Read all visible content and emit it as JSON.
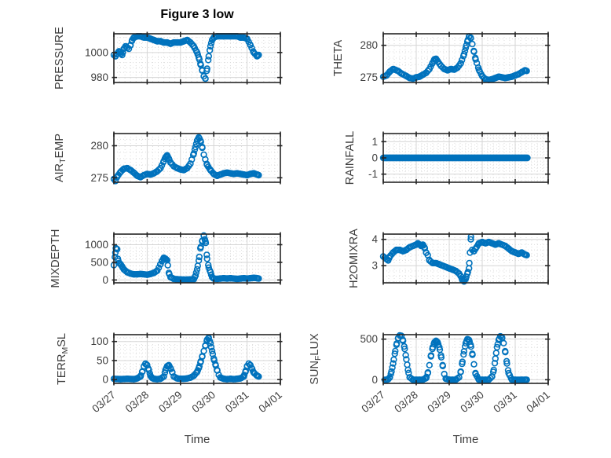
{
  "figure": {
    "title": "Figure 3 low",
    "xlabel": "Time",
    "background": "#ffffff",
    "marker_color": "#0072BD",
    "marker": "open-circle",
    "axis_color": "#262626",
    "label_color": "#3d3d3d",
    "grid_color": "#d6d6d6",
    "minor_grid_color": "#dcdcdc",
    "title_color": "#000000"
  },
  "x_axis": {
    "tick_labels": [
      "03/27",
      "03/28",
      "03/29",
      "03/30",
      "03/31",
      "04/01"
    ],
    "range_days": [
      0,
      5
    ],
    "minor_divisions_per_day": 6,
    "tick_angle_deg": -40,
    "xlabel": "Time"
  },
  "chart_data": [
    {
      "type": "scatter",
      "name": "PRESSURE",
      "row": 0,
      "col": 0,
      "label_parts": {
        "pre": "PRESSURE",
        "sub": "",
        "post": ""
      },
      "ylim": [
        976,
        1015
      ],
      "yticks": [
        980,
        1000
      ],
      "ytick_labels": [
        "980",
        "1000"
      ],
      "x": [
        0,
        0.05,
        0.1,
        0.15,
        0.2,
        0.25,
        0.3,
        0.35,
        0.4,
        0.45,
        0.5,
        0.55,
        0.6,
        0.7,
        0.8,
        0.9,
        1.0,
        1.1,
        1.2,
        1.3,
        1.4,
        1.5,
        1.6,
        1.7,
        1.8,
        1.9,
        2.0,
        2.1,
        2.2,
        2.3,
        2.4,
        2.5,
        2.55,
        2.6,
        2.65,
        2.7,
        2.75,
        2.8,
        2.85,
        2.9,
        2.95,
        3.0,
        3.1,
        3.3,
        3.5,
        3.7,
        3.8,
        3.9,
        4.0,
        4.1,
        4.2,
        4.3,
        4.35
      ],
      "y": [
        998,
        997,
        999,
        1001,
        1000,
        998,
        1003,
        1005,
        1004,
        1003,
        1006,
        1010,
        1012,
        1013,
        1013,
        1012,
        1012,
        1011,
        1010,
        1009,
        1009,
        1008,
        1008,
        1007,
        1008,
        1008,
        1008,
        1009,
        1010,
        1008,
        1005,
        1000,
        996,
        991,
        986,
        981,
        979,
        987,
        997,
        1005,
        1010,
        1012,
        1013,
        1013,
        1013,
        1013,
        1012,
        1012,
        1011,
        1006,
        1000,
        997,
        998
      ]
    },
    {
      "type": "scatter",
      "name": "THETA",
      "row": 0,
      "col": 1,
      "label_parts": {
        "pre": "THETA",
        "sub": "",
        "post": ""
      },
      "ylim": [
        274.2,
        281.8
      ],
      "yticks": [
        275,
        280
      ],
      "ytick_labels": [
        "275",
        "280"
      ],
      "x": [
        0,
        0.1,
        0.2,
        0.3,
        0.35,
        0.45,
        0.55,
        0.7,
        0.8,
        0.9,
        1.0,
        1.1,
        1.2,
        1.3,
        1.4,
        1.5,
        1.55,
        1.6,
        1.65,
        1.75,
        1.85,
        1.95,
        2.05,
        2.15,
        2.25,
        2.35,
        2.45,
        2.5,
        2.55,
        2.6,
        2.65,
        2.7,
        2.75,
        2.8,
        2.9,
        3.0,
        3.1,
        3.2,
        3.3,
        3.4,
        3.5,
        3.6,
        3.7,
        3.8,
        3.9,
        4.0,
        4.1,
        4.2,
        4.3,
        4.35
      ],
      "y": [
        275.1,
        275.3,
        275.9,
        276.3,
        276.2,
        276.0,
        275.6,
        275.2,
        274.9,
        274.8,
        275.0,
        275.1,
        275.4,
        275.7,
        276.3,
        277.3,
        277.8,
        277.9,
        277.5,
        276.8,
        276.3,
        276.1,
        276.3,
        276.2,
        276.5,
        277.2,
        278.6,
        279.6,
        280.6,
        281.4,
        281.2,
        280.2,
        279.0,
        277.8,
        276.2,
        275.2,
        274.7,
        274.6,
        274.7,
        274.9,
        275.1,
        275.0,
        274.9,
        275.0,
        275.1,
        275.3,
        275.5,
        275.8,
        276.1,
        276.0
      ]
    },
    {
      "type": "scatter",
      "name": "AIR_TEMP",
      "row": 1,
      "col": 0,
      "label_parts": {
        "pre": "AIR",
        "sub": "T",
        "post": "EMP"
      },
      "ylim": [
        274.3,
        281.9
      ],
      "yticks": [
        275,
        280
      ],
      "ytick_labels": [
        "275",
        "280"
      ],
      "x": [
        0,
        0.05,
        0.1,
        0.2,
        0.3,
        0.4,
        0.5,
        0.6,
        0.7,
        0.8,
        0.9,
        1.0,
        1.1,
        1.2,
        1.3,
        1.4,
        1.5,
        1.55,
        1.6,
        1.65,
        1.7,
        1.8,
        1.9,
        2.0,
        2.1,
        2.2,
        2.3,
        2.4,
        2.45,
        2.5,
        2.55,
        2.6,
        2.65,
        2.7,
        2.8,
        2.9,
        3.0,
        3.1,
        3.2,
        3.3,
        3.4,
        3.5,
        3.6,
        3.7,
        3.8,
        3.9,
        4.0,
        4.1,
        4.2,
        4.3,
        4.35
      ],
      "y": [
        274.8,
        274.5,
        275.2,
        275.9,
        276.4,
        276.5,
        276.2,
        275.8,
        275.3,
        275.1,
        275.4,
        275.6,
        275.5,
        275.7,
        276.0,
        276.5,
        277.6,
        278.2,
        278.5,
        278.0,
        277.4,
        276.8,
        276.5,
        276.3,
        276.2,
        276.5,
        277.2,
        278.8,
        279.8,
        280.8,
        281.3,
        280.8,
        279.8,
        278.6,
        277.0,
        276.2,
        275.6,
        275.3,
        275.5,
        275.7,
        275.8,
        275.7,
        275.6,
        275.7,
        275.6,
        275.5,
        275.4,
        275.6,
        275.7,
        275.5,
        275.4
      ]
    },
    {
      "type": "scatter",
      "name": "RAINFALL",
      "row": 1,
      "col": 1,
      "dense": true,
      "label_parts": {
        "pre": "RAINFALL",
        "sub": "",
        "post": ""
      },
      "ylim": [
        -1.5,
        1.5
      ],
      "yticks": [
        -1,
        0,
        1
      ],
      "ytick_labels": [
        "-1",
        "0",
        "1"
      ],
      "x": [
        0,
        4.37
      ],
      "y": [
        0,
        0
      ]
    },
    {
      "type": "scatter",
      "name": "MIXDEPTH",
      "row": 2,
      "col": 0,
      "label_parts": {
        "pre": "MIXDEPTH",
        "sub": "",
        "post": ""
      },
      "ylim": [
        -80,
        1300
      ],
      "yticks": [
        0,
        500,
        1000
      ],
      "ytick_labels": [
        "0",
        "500",
        "1000"
      ],
      "x": [
        0,
        0.03,
        0.06,
        0.1,
        0.12,
        0.15,
        0.2,
        0.25,
        0.3,
        0.4,
        0.5,
        0.6,
        0.7,
        0.8,
        0.9,
        1.0,
        1.1,
        1.2,
        1.3,
        1.35,
        1.4,
        1.45,
        1.5,
        1.55,
        1.6,
        1.65,
        1.7,
        1.8,
        1.9,
        2.0,
        2.1,
        2.2,
        2.3,
        2.4,
        2.45,
        2.5,
        2.55,
        2.6,
        2.65,
        2.7,
        2.73,
        2.76,
        2.8,
        2.85,
        2.9,
        2.95,
        3.0,
        3.1,
        3.2,
        3.3,
        3.4,
        3.5,
        3.6,
        3.7,
        3.8,
        3.9,
        4.0,
        4.1,
        4.2,
        4.3,
        4.35
      ],
      "y": [
        420,
        650,
        900,
        870,
        600,
        480,
        450,
        380,
        300,
        220,
        180,
        160,
        160,
        170,
        160,
        150,
        170,
        200,
        260,
        350,
        450,
        550,
        630,
        600,
        560,
        200,
        80,
        30,
        20,
        15,
        10,
        10,
        15,
        20,
        120,
        300,
        550,
        900,
        1100,
        1260,
        1150,
        1050,
        600,
        350,
        220,
        80,
        40,
        30,
        40,
        50,
        40,
        50,
        40,
        30,
        40,
        50,
        40,
        50,
        60,
        50,
        40
      ]
    },
    {
      "type": "scatter",
      "name": "H2OMIXRA",
      "row": 2,
      "col": 1,
      "label_parts": {
        "pre": "H2OMIXRA",
        "sub": "",
        "post": ""
      },
      "ylim": [
        2.35,
        4.2
      ],
      "yticks": [
        3,
        4
      ],
      "ytick_labels": [
        "3",
        "4"
      ],
      "x": [
        0,
        0.05,
        0.1,
        0.15,
        0.2,
        0.3,
        0.4,
        0.5,
        0.6,
        0.7,
        0.8,
        0.9,
        1.0,
        1.05,
        1.1,
        1.15,
        1.2,
        1.25,
        1.3,
        1.35,
        1.4,
        1.5,
        1.6,
        1.7,
        1.8,
        1.9,
        2.0,
        2.1,
        2.2,
        2.3,
        2.35,
        2.4,
        2.45,
        2.5,
        2.55,
        2.6,
        2.63,
        2.66,
        2.7,
        2.75,
        2.8,
        2.9,
        3.0,
        3.1,
        3.2,
        3.3,
        3.4,
        3.5,
        3.6,
        3.7,
        3.8,
        3.9,
        4.0,
        4.1,
        4.2,
        4.3,
        4.35
      ],
      "y": [
        3.35,
        3.3,
        3.25,
        3.2,
        3.35,
        3.5,
        3.6,
        3.6,
        3.55,
        3.6,
        3.7,
        3.75,
        3.8,
        3.85,
        3.8,
        3.75,
        3.8,
        3.7,
        3.5,
        3.4,
        3.2,
        3.1,
        3.1,
        3.05,
        3.0,
        2.95,
        2.9,
        2.85,
        2.8,
        2.7,
        2.6,
        2.45,
        2.4,
        2.5,
        2.7,
        2.9,
        3.5,
        4.1,
        3.6,
        3.55,
        3.65,
        3.85,
        3.9,
        3.85,
        3.9,
        3.85,
        3.8,
        3.85,
        3.8,
        3.75,
        3.65,
        3.55,
        3.5,
        3.45,
        3.5,
        3.42,
        3.4
      ]
    },
    {
      "type": "scatter",
      "name": "TERR_MSL",
      "row": 3,
      "col": 0,
      "label_parts": {
        "pre": "TERR",
        "sub": "M",
        "post": "SL"
      },
      "ylim": [
        -10,
        118
      ],
      "yticks": [
        0,
        50,
        100
      ],
      "ytick_labels": [
        "0",
        "50",
        "100"
      ],
      "x": [
        0,
        0.2,
        0.4,
        0.6,
        0.7,
        0.8,
        0.85,
        0.9,
        0.95,
        1.0,
        1.05,
        1.1,
        1.15,
        1.2,
        1.3,
        1.4,
        1.5,
        1.55,
        1.6,
        1.65,
        1.7,
        1.75,
        1.8,
        1.9,
        2.0,
        2.1,
        2.2,
        2.3,
        2.4,
        2.5,
        2.55,
        2.6,
        2.65,
        2.7,
        2.75,
        2.8,
        2.85,
        2.9,
        2.95,
        3.0,
        3.05,
        3.1,
        3.15,
        3.2,
        3.3,
        3.4,
        3.5,
        3.6,
        3.7,
        3.8,
        3.9,
        3.95,
        4.0,
        4.05,
        4.1,
        4.15,
        4.2,
        4.3,
        4.35
      ],
      "y": [
        2,
        1,
        2,
        1,
        3,
        8,
        20,
        35,
        42,
        38,
        25,
        10,
        4,
        2,
        1,
        2,
        8,
        25,
        35,
        38,
        30,
        20,
        8,
        3,
        2,
        2,
        3,
        5,
        10,
        20,
        30,
        45,
        60,
        75,
        90,
        105,
        110,
        95,
        75,
        55,
        40,
        25,
        12,
        5,
        2,
        1,
        2,
        1,
        2,
        3,
        8,
        20,
        35,
        42,
        38,
        28,
        18,
        10,
        8
      ]
    },
    {
      "type": "scatter",
      "name": "SUN_FLUX",
      "row": 3,
      "col": 1,
      "label_parts": {
        "pre": "SUN",
        "sub": "F",
        "post": "LUX"
      },
      "ylim": [
        -45,
        555
      ],
      "yticks": [
        0,
        500
      ],
      "ytick_labels": [
        "0",
        "500"
      ],
      "x": [
        0.05,
        0.1,
        0.15,
        0.2,
        0.25,
        0.3,
        0.35,
        0.4,
        0.45,
        0.5,
        0.55,
        0.6,
        0.65,
        0.7,
        0.75,
        0.8,
        0.9,
        1.0,
        1.1,
        1.2,
        1.3,
        1.35,
        1.4,
        1.45,
        1.5,
        1.55,
        1.6,
        1.65,
        1.7,
        1.75,
        1.8,
        1.85,
        1.9,
        2.0,
        2.1,
        2.2,
        2.3,
        2.35,
        2.4,
        2.45,
        2.5,
        2.55,
        2.6,
        2.65,
        2.7,
        2.75,
        2.8,
        2.9,
        3.0,
        3.1,
        3.2,
        3.3,
        3.35,
        3.4,
        3.45,
        3.5,
        3.55,
        3.6,
        3.65,
        3.7,
        3.75,
        3.8,
        3.9,
        4.0,
        4.1,
        4.2,
        4.3,
        4.35
      ],
      "y": [
        0,
        0,
        5,
        30,
        100,
        200,
        320,
        430,
        510,
        545,
        540,
        480,
        380,
        250,
        120,
        30,
        0,
        0,
        0,
        0,
        20,
        80,
        180,
        300,
        400,
        460,
        480,
        460,
        400,
        300,
        180,
        70,
        10,
        0,
        0,
        0,
        30,
        100,
        220,
        350,
        450,
        500,
        490,
        430,
        320,
        190,
        70,
        0,
        0,
        0,
        0,
        40,
        120,
        260,
        400,
        490,
        535,
        520,
        450,
        340,
        200,
        80,
        0,
        0,
        0,
        0,
        0,
        0
      ]
    }
  ]
}
